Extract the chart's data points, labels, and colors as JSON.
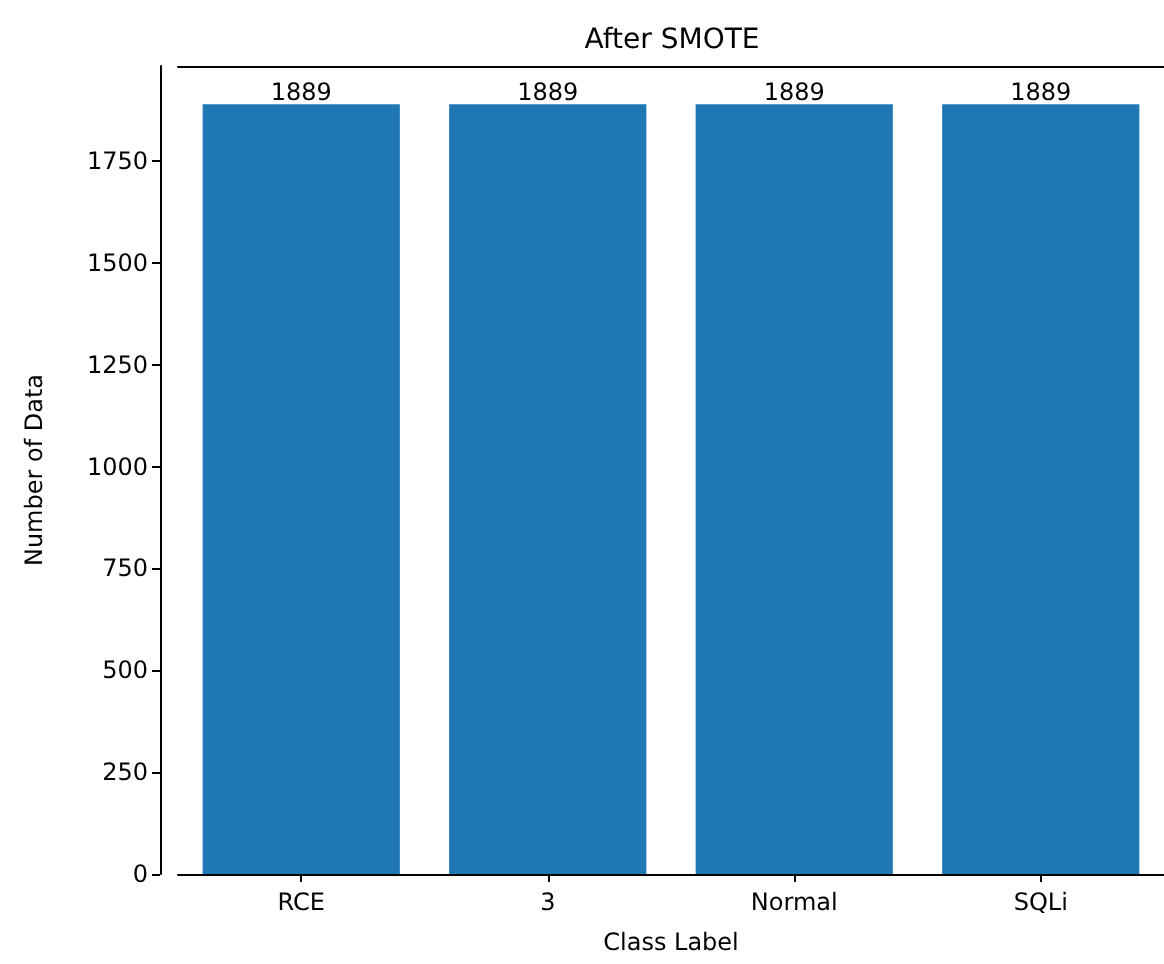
{
  "chart_data": {
    "type": "bar",
    "title": "After SMOTE",
    "xlabel": "Class Label",
    "ylabel": "Number of Data",
    "categories": [
      "RCE",
      "3",
      "Normal",
      "SQLi"
    ],
    "values": [
      1889,
      1889,
      1889,
      1889
    ],
    "color": "#1f77b4",
    "ylim": [
      0,
      1983
    ],
    "yticks": [
      0,
      250,
      500,
      750,
      1000,
      1250,
      1500,
      1750
    ],
    "data_labels": true,
    "grid": false
  }
}
